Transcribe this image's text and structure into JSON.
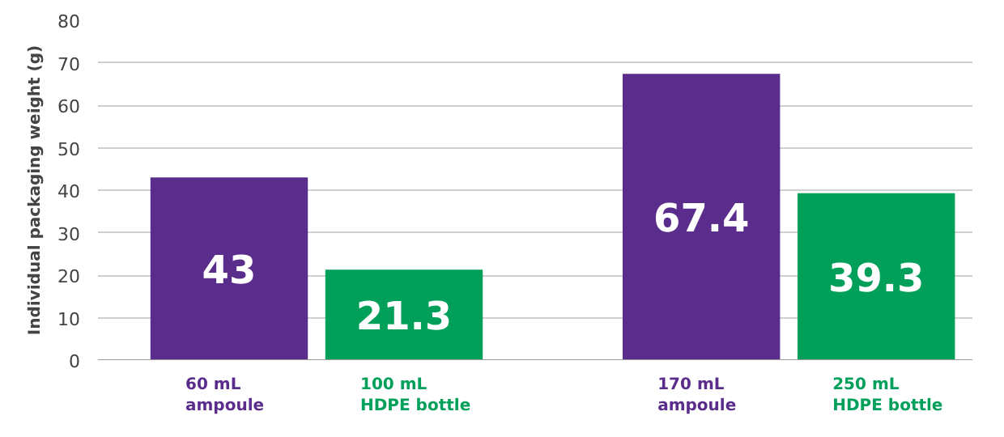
{
  "chart_data": {
    "type": "bar",
    "ylabel": "Individual packaging weight (g)",
    "categories": [
      "60 mL\nampoule",
      "100 mL\nHDPE bottle",
      "170 mL\nampoule",
      "250 mL\nHDPE bottle"
    ],
    "values": [
      43,
      21.3,
      67.4,
      39.3
    ],
    "colors": [
      "#5a2d8c",
      "#00a05a",
      "#5a2d8c",
      "#00a05a"
    ],
    "ylim": [
      0,
      80
    ],
    "yticks": [
      0,
      10,
      20,
      30,
      40,
      50,
      60,
      70,
      80
    ],
    "grid": "y",
    "data_labels": true
  }
}
